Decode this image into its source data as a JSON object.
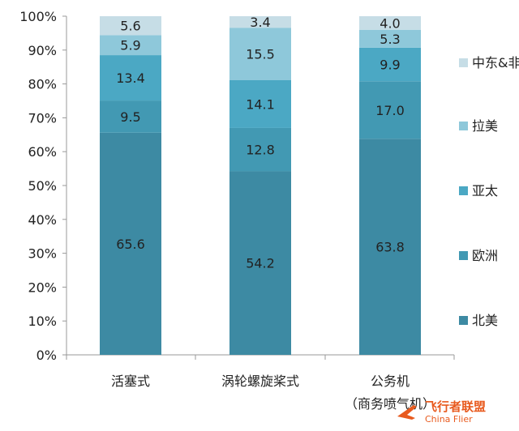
{
  "chart_data": {
    "type": "bar",
    "stacked": true,
    "categories": [
      "活塞式",
      "涡轮螺旋桨式",
      "公务机（商务喷气机）"
    ],
    "category_lines": [
      [
        "活塞式"
      ],
      [
        "涡轮螺旋桨式"
      ],
      [
        "公务机",
        "（商务喷气机）"
      ]
    ],
    "series": [
      {
        "name": "北美",
        "values": [
          65.6,
          54.2,
          63.8
        ],
        "color": "#3d8aa3"
      },
      {
        "name": "欧洲",
        "values": [
          9.5,
          12.8,
          17.0
        ],
        "color": "#4299b3"
      },
      {
        "name": "亚太",
        "values": [
          13.4,
          14.1,
          9.9
        ],
        "color": "#4ba8c4"
      },
      {
        "name": "拉美",
        "values": [
          5.9,
          15.5,
          5.3
        ],
        "color": "#8ec8da"
      },
      {
        "name": "中东&非",
        "values": [
          5.6,
          3.4,
          4.0
        ],
        "color": "#c6dde6"
      }
    ],
    "y_ticks": [
      "0%",
      "10%",
      "20%",
      "30%",
      "40%",
      "50%",
      "60%",
      "70%",
      "80%",
      "90%",
      "100%"
    ],
    "ylim": [
      0,
      100
    ],
    "legend_position": "right",
    "grid": false
  },
  "watermark": {
    "brand": "飞行者联盟",
    "site": "China Flier"
  }
}
